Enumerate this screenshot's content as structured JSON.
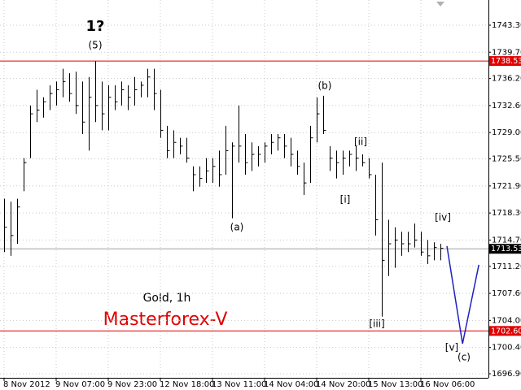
{
  "chart_data": {
    "type": "ohlc",
    "label": "Gold, 1h",
    "brand": "Masterforex-V",
    "color": "#000000",
    "grid": true,
    "xlim": [
      -0.625,
      74.375
    ],
    "ylim": [
      1696.36,
      1746.65
    ],
    "xticks": [
      {
        "value": 0,
        "label": "8 Nov 2012"
      },
      {
        "value": 8,
        "label": "9 Nov 07:00"
      },
      {
        "value": 16,
        "label": "9 Nov 23:00"
      },
      {
        "value": 24,
        "label": "12 Nov 18:00"
      },
      {
        "value": 32,
        "label": "13 Nov 11:00"
      },
      {
        "value": 40,
        "label": "14 Nov 04:00"
      },
      {
        "value": 48,
        "label": "14 Nov 20:00"
      },
      {
        "value": 56,
        "label": "15 Nov 13:00"
      },
      {
        "value": 64,
        "label": "16 Nov 06:00"
      }
    ],
    "yticks": [
      {
        "value": 1743.3,
        "label": "1743.30"
      },
      {
        "value": 1739.7,
        "label": "1739.70"
      },
      {
        "value": 1736.2,
        "label": "1736.20"
      },
      {
        "value": 1732.6,
        "label": "1732.60"
      },
      {
        "value": 1729,
        "label": "1729.00"
      },
      {
        "value": 1725.5,
        "label": "1725.50"
      },
      {
        "value": 1721.9,
        "label": "1721.90"
      },
      {
        "value": 1718.3,
        "label": "1718.30"
      },
      {
        "value": 1714.7,
        "label": "1714.70"
      },
      {
        "value": 1711.2,
        "label": "1711.20"
      },
      {
        "value": 1707.6,
        "label": "1707.60"
      },
      {
        "value": 1704,
        "label": "1704.00"
      },
      {
        "value": 1700.4,
        "label": "1700.40"
      },
      {
        "value": 1696.9,
        "label": "1696.90"
      }
    ],
    "x": [
      0,
      1,
      2,
      3,
      4,
      5,
      6,
      7,
      8,
      9,
      10,
      11,
      12,
      13,
      14,
      15,
      16,
      17,
      18,
      19,
      20,
      21,
      22,
      23,
      24,
      25,
      26,
      27,
      28,
      29,
      30,
      31,
      32,
      33,
      34,
      35,
      36,
      37,
      38,
      39,
      40,
      41,
      42,
      43,
      44,
      45,
      46,
      47,
      48,
      49,
      50,
      51,
      52,
      53,
      54,
      55,
      56,
      57,
      58,
      59,
      60,
      61,
      62,
      63,
      64,
      65,
      66,
      67
    ],
    "high": [
      1720.2,
      1719.8,
      1720.2,
      1725.6,
      1732.6,
      1734.7,
      1733.7,
      1735.3,
      1735.8,
      1737.5,
      1736.9,
      1737.1,
      1735.8,
      1736.4,
      1738.5,
      1735.8,
      1735.3,
      1735.3,
      1735.8,
      1735.3,
      1736.4,
      1735.8,
      1737.5,
      1737.5,
      1734.7,
      1729.9,
      1729.3,
      1728.3,
      1728.3,
      1724.5,
      1724.5,
      1725.6,
      1725.6,
      1726.6,
      1729.9,
      1727.7,
      1732.6,
      1728.8,
      1727.7,
      1727.2,
      1727.7,
      1728.8,
      1728.8,
      1728.8,
      1728.3,
      1726.6,
      1725,
      1729.9,
      1733.7,
      1733.9,
      1727.2,
      1726.6,
      1726.6,
      1726.6,
      1727.2,
      1726.1,
      1725.6,
      1723.4,
      1725,
      1717.4,
      1716.4,
      1715.8,
      1715.8,
      1716.9,
      1715.8,
      1714.7,
      1714.4,
      1714.2
    ],
    "low": [
      1713.1,
      1712.6,
      1714.2,
      1721.2,
      1725.6,
      1730.4,
      1731,
      1732,
      1732.6,
      1733.7,
      1733.1,
      1731.5,
      1728.8,
      1726.6,
      1730.4,
      1729.3,
      1729.3,
      1732,
      1732.6,
      1732,
      1732.6,
      1733.7,
      1733.7,
      1732,
      1728.3,
      1725.6,
      1725.6,
      1726.1,
      1725,
      1721.2,
      1721.8,
      1722.3,
      1722.3,
      1721.8,
      1723.4,
      1717.6,
      1725,
      1723.4,
      1723.9,
      1724.5,
      1725,
      1726.1,
      1726.6,
      1725.6,
      1724.5,
      1723.4,
      1720.7,
      1722.3,
      1727.7,
      1728.8,
      1723.9,
      1722.9,
      1723.4,
      1724.5,
      1723.9,
      1724.5,
      1722.9,
      1715.3,
      1704.5,
      1709.9,
      1711,
      1712.6,
      1713.1,
      1713.7,
      1712.6,
      1711.5,
      1712,
      1712
    ],
    "close": [
      1716.4,
      1715.3,
      1719.1,
      1725,
      1731.5,
      1732,
      1733.1,
      1734.2,
      1734.7,
      1735.8,
      1734.2,
      1732.6,
      1730.4,
      1733.7,
      1732.6,
      1731.5,
      1733.7,
      1733.1,
      1734.7,
      1733.7,
      1734.7,
      1735.3,
      1736.4,
      1734.2,
      1729.3,
      1726.6,
      1727.7,
      1727.2,
      1725.6,
      1723.4,
      1722.9,
      1723.9,
      1724.5,
      1723.4,
      1726.6,
      1727.2,
      1727.2,
      1725,
      1726.1,
      1726.1,
      1727.2,
      1727.7,
      1728.3,
      1727.2,
      1726.1,
      1724.5,
      1722.3,
      1728.3,
      1731.5,
      1729.3,
      1725.6,
      1725,
      1725.6,
      1726.1,
      1725.6,
      1725,
      1723.4,
      1717.4,
      1712,
      1714.2,
      1714.7,
      1714.2,
      1714.2,
      1714.7,
      1713.1,
      1712.6,
      1713.7,
      1713.6
    ],
    "levels": [
      {
        "value": 1738.53,
        "label": "1738.53",
        "color": "#e00000"
      },
      {
        "value": 1702.6,
        "label": "1702.60",
        "color": "#e00000"
      },
      {
        "value": 1713.53,
        "label": "1713.53",
        "color": "#000000"
      }
    ],
    "projection": {
      "color": "#2020c0",
      "x": [
        68,
        70.4,
        72.9
      ],
      "values": [
        1713.9,
        1700.9,
        1711.4
      ]
    },
    "annotations": [
      "1?",
      "(5)",
      "(b)",
      "(a)",
      "[ii]",
      "[i]",
      "[iv]",
      "[iii]",
      "[v]",
      "(c)"
    ]
  }
}
